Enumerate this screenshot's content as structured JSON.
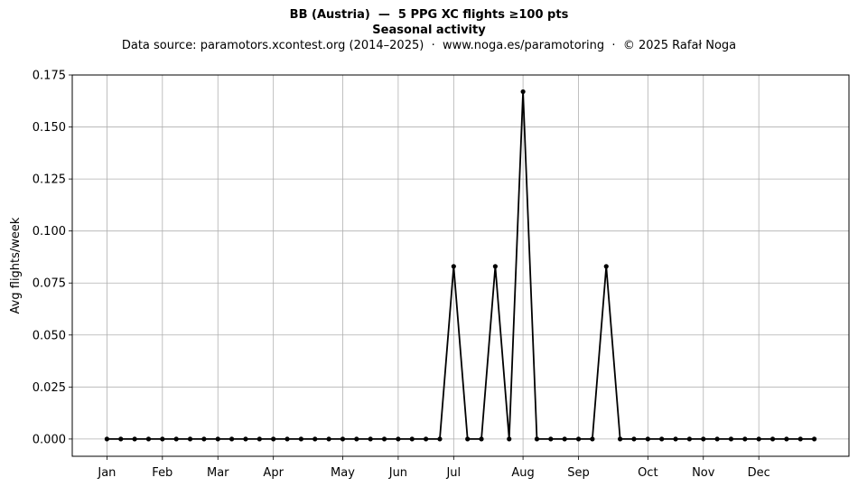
{
  "chart_data": {
    "type": "line",
    "title": "BB (Austria)  —  5 PPG XC flights ≥100 pts",
    "subtitle": "Seasonal activity",
    "source_note": "Data source: paramotors.xcontest.org (2014–2025)  ·  www.noga.es/paramotoring  ·  © 2025 Rafał Noga",
    "xlabel": "",
    "ylabel": "Avg flights/week",
    "x": [
      1,
      2,
      3,
      4,
      5,
      6,
      7,
      8,
      9,
      10,
      11,
      12,
      13,
      14,
      15,
      16,
      17,
      18,
      19,
      20,
      21,
      22,
      23,
      24,
      25,
      26,
      27,
      28,
      29,
      30,
      31,
      32,
      33,
      34,
      35,
      36,
      37,
      38,
      39,
      40,
      41,
      42,
      43,
      44,
      45,
      46,
      47,
      48,
      49,
      50,
      51,
      52
    ],
    "series": [
      {
        "values": [
          0,
          0,
          0,
          0,
          0,
          0,
          0,
          0,
          0,
          0,
          0,
          0,
          0,
          0,
          0,
          0,
          0,
          0,
          0,
          0,
          0,
          0,
          0,
          0,
          0,
          0.083,
          0,
          0,
          0.083,
          0,
          0.167,
          0,
          0,
          0,
          0,
          0,
          0.083,
          0,
          0,
          0,
          0,
          0,
          0,
          0,
          0,
          0,
          0,
          0,
          0,
          0,
          0,
          0
        ],
        "color": "#000000"
      }
    ],
    "x_ticks": [
      {
        "label": "Jan",
        "week": 1
      },
      {
        "label": "Feb",
        "week": 5
      },
      {
        "label": "Mar",
        "week": 9
      },
      {
        "label": "Apr",
        "week": 13
      },
      {
        "label": "May",
        "week": 18
      },
      {
        "label": "Jun",
        "week": 22
      },
      {
        "label": "Jul",
        "week": 26
      },
      {
        "label": "Aug",
        "week": 31
      },
      {
        "label": "Sep",
        "week": 35
      },
      {
        "label": "Oct",
        "week": 40
      },
      {
        "label": "Nov",
        "week": 44
      },
      {
        "label": "Dec",
        "week": 48
      }
    ],
    "y_ticks": [
      "0.000",
      "0.025",
      "0.050",
      "0.075",
      "0.100",
      "0.125",
      "0.150",
      "0.175"
    ],
    "ylim": [
      -0.0083,
      0.175
    ],
    "xlim": [
      -1.5,
      54.5
    ],
    "grid": true,
    "legend": "none"
  }
}
